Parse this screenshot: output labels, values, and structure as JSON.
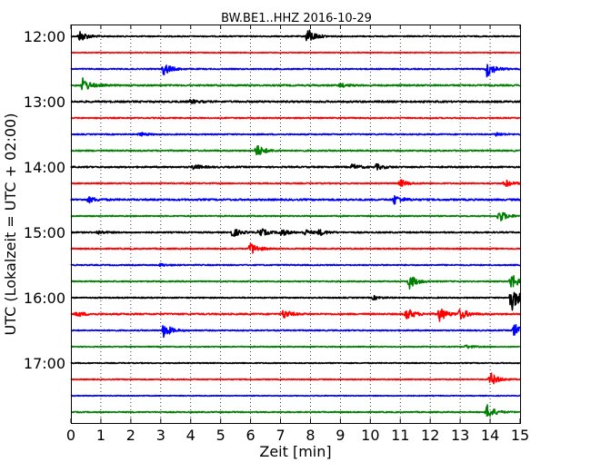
{
  "chart_data": {
    "type": "line",
    "title": "BW.BE1..HHZ 2016-10-29",
    "xlabel": "Zeit  [min]",
    "ylabel": "UTC (Lokalzeit = UTC + 02:00)",
    "xlim": [
      0,
      15
    ],
    "x_ticks": [
      "0",
      "1",
      "2",
      "3",
      "4",
      "5",
      "6",
      "7",
      "8",
      "9",
      "10",
      "11",
      "12",
      "13",
      "14",
      "15"
    ],
    "y_ticks": [
      "12:00",
      "13:00",
      "14:00",
      "15:00",
      "16:00",
      "17:00"
    ],
    "grid": "vertical dotted",
    "colors": [
      "#000000",
      "#ff0000",
      "#0000ff",
      "#008000"
    ],
    "traces": [
      {
        "start": "12:00",
        "color": "#000000",
        "noise": 0.6,
        "events": [
          {
            "t": 0.3,
            "amp": 6
          },
          {
            "t": 7.9,
            "amp": 9
          }
        ]
      },
      {
        "start": "12:15",
        "color": "#ff0000",
        "noise": 0.4,
        "events": []
      },
      {
        "start": "12:30",
        "color": "#0000ff",
        "noise": 0.6,
        "events": [
          {
            "t": 3.1,
            "amp": 7
          },
          {
            "t": 13.9,
            "amp": 9
          }
        ]
      },
      {
        "start": "12:45",
        "color": "#008000",
        "noise": 0.8,
        "events": [
          {
            "t": 0.4,
            "amp": 8
          },
          {
            "t": 9.0,
            "amp": 2
          }
        ]
      },
      {
        "start": "13:00",
        "color": "#000000",
        "noise": 0.9,
        "events": [
          {
            "t": 4.0,
            "amp": 2
          }
        ]
      },
      {
        "start": "13:15",
        "color": "#ff0000",
        "noise": 0.6,
        "events": []
      },
      {
        "start": "13:30",
        "color": "#0000ff",
        "noise": 0.6,
        "events": [
          {
            "t": 2.3,
            "amp": 2
          },
          {
            "t": 14.2,
            "amp": 2
          }
        ]
      },
      {
        "start": "13:45",
        "color": "#008000",
        "noise": 0.7,
        "events": [
          {
            "t": 6.2,
            "amp": 7
          }
        ]
      },
      {
        "start": "14:00",
        "color": "#000000",
        "noise": 0.8,
        "events": [
          {
            "t": 4.1,
            "amp": 3
          },
          {
            "t": 9.4,
            "amp": 3
          },
          {
            "t": 10.2,
            "amp": 3
          }
        ]
      },
      {
        "start": "14:15",
        "color": "#ff0000",
        "noise": 0.6,
        "events": [
          {
            "t": 11.0,
            "amp": 4
          },
          {
            "t": 14.5,
            "amp": 4
          }
        ]
      },
      {
        "start": "14:30",
        "color": "#0000ff",
        "noise": 0.9,
        "events": [
          {
            "t": 0.6,
            "amp": 3
          },
          {
            "t": 10.8,
            "amp": 5
          }
        ]
      },
      {
        "start": "14:45",
        "color": "#008000",
        "noise": 0.6,
        "events": [
          {
            "t": 14.3,
            "amp": 7
          }
        ]
      },
      {
        "start": "15:00",
        "color": "#000000",
        "noise": 0.7,
        "events": [
          {
            "t": 0.9,
            "amp": 2
          },
          {
            "t": 5.4,
            "amp": 5
          },
          {
            "t": 6.3,
            "amp": 5
          },
          {
            "t": 7.0,
            "amp": 4
          },
          {
            "t": 7.8,
            "amp": 3
          },
          {
            "t": 8.3,
            "amp": 3
          }
        ]
      },
      {
        "start": "15:15",
        "color": "#ff0000",
        "noise": 0.6,
        "events": [
          {
            "t": 6.0,
            "amp": 7
          }
        ]
      },
      {
        "start": "15:30",
        "color": "#0000ff",
        "noise": 0.6,
        "events": [
          {
            "t": 3.0,
            "amp": 1.5
          }
        ]
      },
      {
        "start": "15:45",
        "color": "#008000",
        "noise": 0.6,
        "events": [
          {
            "t": 11.3,
            "amp": 8
          },
          {
            "t": 14.7,
            "amp": 9
          }
        ]
      },
      {
        "start": "16:00",
        "color": "#000000",
        "noise": 0.6,
        "events": [
          {
            "t": 10.1,
            "amp": 2
          },
          {
            "t": 14.7,
            "amp": 16
          }
        ]
      },
      {
        "start": "16:15",
        "color": "#ff0000",
        "noise": 0.8,
        "events": [
          {
            "t": 0.2,
            "amp": 3
          },
          {
            "t": 7.1,
            "amp": 5
          },
          {
            "t": 11.2,
            "amp": 7
          },
          {
            "t": 12.3,
            "amp": 8
          },
          {
            "t": 13.0,
            "amp": 6
          }
        ]
      },
      {
        "start": "16:30",
        "color": "#0000ff",
        "noise": 0.6,
        "events": [
          {
            "t": 3.1,
            "amp": 8
          },
          {
            "t": 14.8,
            "amp": 8
          }
        ]
      },
      {
        "start": "16:45",
        "color": "#008000",
        "noise": 0.5,
        "events": [
          {
            "t": 13.2,
            "amp": 2
          }
        ]
      },
      {
        "start": "17:00",
        "color": "#000000",
        "noise": 0.5,
        "events": []
      },
      {
        "start": "17:15",
        "color": "#ff0000",
        "noise": 0.5,
        "events": [
          {
            "t": 14.0,
            "amp": 8
          }
        ]
      },
      {
        "start": "17:30",
        "color": "#0000ff",
        "noise": 0.4,
        "events": []
      },
      {
        "start": "17:45",
        "color": "#008000",
        "noise": 0.6,
        "events": [
          {
            "t": 13.9,
            "amp": 8
          }
        ]
      }
    ]
  }
}
